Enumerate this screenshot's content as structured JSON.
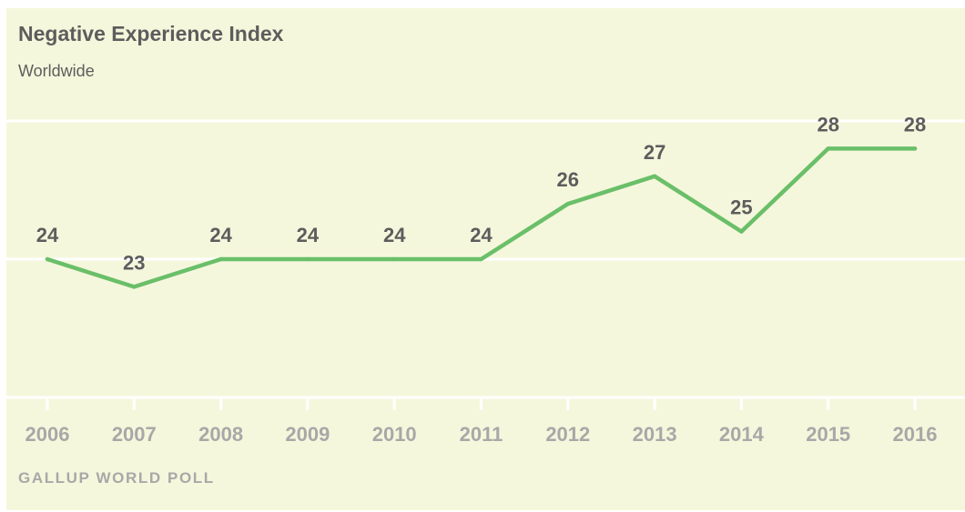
{
  "header": {
    "title": "Negative Experience Index",
    "subtitle": "Worldwide"
  },
  "footer": {
    "source": "GALLUP WORLD POLL"
  },
  "colors": {
    "background": "#f5f7dc",
    "line": "#6abf69",
    "gridline": "#ffffff",
    "label_text": "#5d5d5d",
    "tick_text": "#a8a8a8"
  },
  "chart_data": {
    "type": "line",
    "title": "Negative Experience Index",
    "subtitle": "Worldwide",
    "xlabel": "",
    "ylabel": "",
    "categories": [
      "2006",
      "2007",
      "2008",
      "2009",
      "2010",
      "2011",
      "2012",
      "2013",
      "2014",
      "2015",
      "2016"
    ],
    "series": [
      {
        "values": [
          24,
          23,
          24,
          24,
          24,
          24,
          26,
          27,
          25,
          28,
          28
        ]
      }
    ],
    "ylim": [
      19,
      29
    ],
    "gridlines": [
      19,
      24,
      29
    ],
    "grid": "horizontal",
    "data_labels": true
  }
}
